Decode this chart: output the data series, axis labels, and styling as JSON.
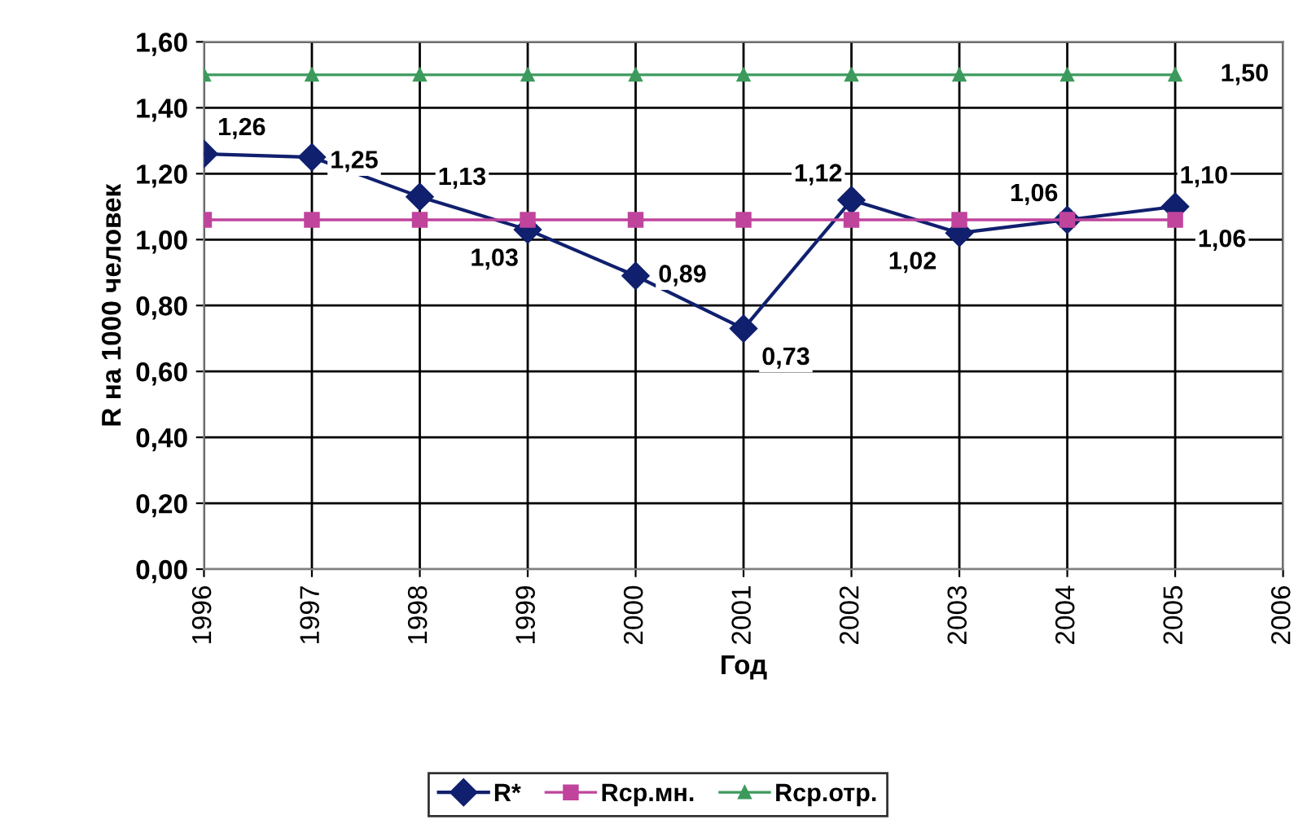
{
  "chart_data": {
    "type": "line",
    "xlabel": "Год",
    "ylabel": "R на 1000 человек",
    "x": [
      1996,
      1997,
      1998,
      1999,
      2000,
      2001,
      2002,
      2003,
      2004,
      2005
    ],
    "xlim": [
      1996,
      2006
    ],
    "xticks": [
      1996,
      1997,
      1998,
      1999,
      2000,
      2001,
      2002,
      2003,
      2004,
      2005,
      2006
    ],
    "ylim": [
      0,
      1.6
    ],
    "yticks": [
      {
        "value": 0,
        "label": "0,00"
      },
      {
        "value": 0.2,
        "label": "0,20"
      },
      {
        "value": 0.4,
        "label": "0,40"
      },
      {
        "value": 0.6,
        "label": "0,60"
      },
      {
        "value": 0.8,
        "label": "0,80"
      },
      {
        "value": 1.0,
        "label": "1,00"
      },
      {
        "value": 1.2,
        "label": "1,20"
      },
      {
        "value": 1.4,
        "label": "1,40"
      },
      {
        "value": 1.6,
        "label": "1,60"
      }
    ],
    "grid": true,
    "legend": "bottom",
    "series": [
      {
        "name": "R*",
        "color": "#10206e",
        "marker": "diamond",
        "values": [
          1.26,
          1.25,
          1.13,
          1.03,
          0.89,
          0.73,
          1.12,
          1.02,
          1.06,
          1.1
        ],
        "value_labels": [
          "1,26",
          "1,25",
          "1,13",
          "1,03",
          "0,89",
          "0,73",
          "1,12",
          "1,02",
          "1,06",
          "1,10"
        ]
      },
      {
        "name": "Rср.мн.",
        "color": "#c0449c",
        "marker": "square",
        "values": [
          1.06,
          1.06,
          1.06,
          1.06,
          1.06,
          1.06,
          1.06,
          1.06,
          1.06,
          1.06
        ],
        "value_labels": [
          null,
          null,
          null,
          null,
          null,
          null,
          null,
          null,
          null,
          "1,06"
        ]
      },
      {
        "name": "Rср.отр.",
        "color": "#3c9a5c",
        "marker": "triangle",
        "values": [
          1.5,
          1.5,
          1.5,
          1.5,
          1.5,
          1.5,
          1.5,
          1.5,
          1.5,
          1.5
        ],
        "value_labels": [
          null,
          null,
          null,
          null,
          null,
          null,
          null,
          null,
          null,
          "1,50"
        ]
      }
    ]
  }
}
